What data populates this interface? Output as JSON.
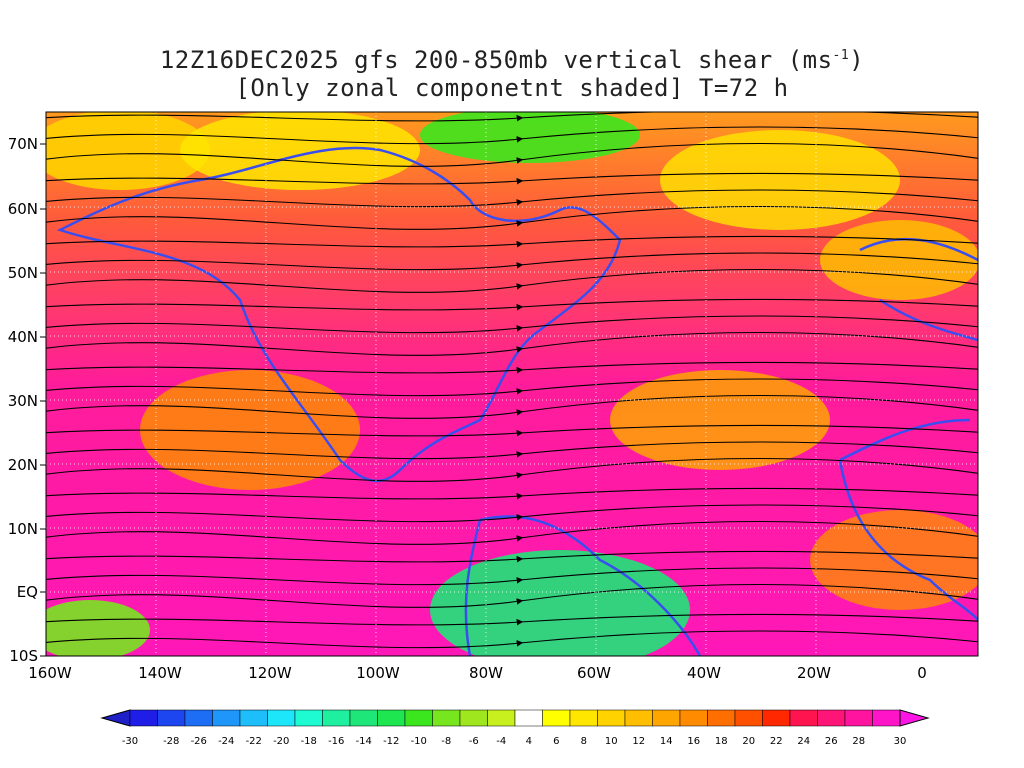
{
  "title": {
    "line1_prefix": "12Z16DEC2025 gfs 200-850mb vertical shear (ms",
    "line1_sup": "-1",
    "line1_suffix": ")",
    "line2": "[Only zonal componetnt shaded] T=72 h"
  },
  "map": {
    "lon_labels": [
      "160W",
      "140W",
      "120W",
      "100W",
      "80W",
      "60W",
      "40W",
      "20W",
      "0"
    ],
    "lat_labels": [
      "70N",
      "60N",
      "50N",
      "40N",
      "30N",
      "20N",
      "10N",
      "EQ",
      "10S"
    ],
    "colors": {
      "coast": "#3a4ef0",
      "streamline": "#000000",
      "contour": "#8a2be2"
    }
  },
  "colorbar": {
    "labels": [
      "-30",
      "-28",
      "-26",
      "-24",
      "-22",
      "-20",
      "-18",
      "-16",
      "-14",
      "-12",
      "-10",
      "-8",
      "-6",
      "-4",
      "4",
      "6",
      "8",
      "10",
      "12",
      "14",
      "16",
      "18",
      "20",
      "22",
      "24",
      "26",
      "28",
      "30"
    ],
    "colors": [
      "#1e1ee6",
      "#1e46f0",
      "#1e6ef5",
      "#1e96fa",
      "#1ebefa",
      "#1ee6fa",
      "#1efad2",
      "#1ef0a0",
      "#1ee678",
      "#1ee650",
      "#3ce61e",
      "#78e61e",
      "#a0e61e",
      "#c8f01e",
      "#ffffff",
      "#ffff00",
      "#ffe600",
      "#ffd200",
      "#ffbe00",
      "#ffa500",
      "#ff8c00",
      "#ff6e00",
      "#ff5000",
      "#ff2800",
      "#ff1450",
      "#ff1478",
      "#ff14a0",
      "#ff14c8"
    ]
  }
}
